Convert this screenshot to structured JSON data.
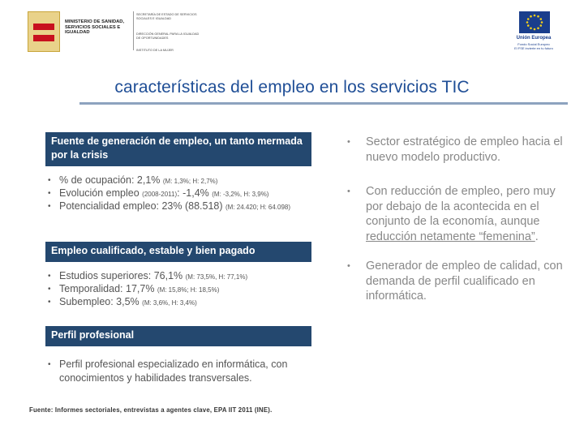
{
  "header": {
    "ministry_name": "Ministerio de Sanidad, Servicios Sociales e Igualdad",
    "ministry_sub1": "Secretaría de Estado de Servicios Sociales e Igualdad",
    "ministry_sub2": "Dirección General para la Igualdad de Oportunidades",
    "ministry_sub3": "Instituto de la Mujer",
    "eu_name": "Unión Europea",
    "eu_fund": "Fondo Social Europeo",
    "eu_motto": "El FSE invierte en tu futuro"
  },
  "title": "características del empleo en los servicios TIC",
  "left": {
    "section1": {
      "heading": "Fuente de generación de empleo, un tanto mermada por la crisis",
      "items": [
        {
          "main": "% de ocupación: 2,1% ",
          "small": "(M: 1,3%; H: 2,7%)",
          "tail": ""
        },
        {
          "main": "Evolución empleo ",
          "small": "(2008-2011)",
          "tail": ": -1,4% ",
          "small2": "(M: -3,2%, H: 3,9%)"
        },
        {
          "main": "Potencialidad empleo: 23% (88.518) ",
          "small": "(M: 24.420; H: 64.098)",
          "tail": ""
        }
      ]
    },
    "section2": {
      "heading": "Empleo cualificado, estable y bien pagado",
      "items": [
        {
          "main": "Estudios superiores: 76,1% ",
          "small": "(M: 73,5%, H: 77,1%)"
        },
        {
          "main": "Temporalidad: 17,7% ",
          "small": "(M: 15,8%; H: 18,5%)"
        },
        {
          "main": "Subempleo: 3,5% ",
          "small": "(M: 3,6%, H: 3,4%)"
        }
      ]
    },
    "section3": {
      "heading": "Perfil profesional",
      "items": [
        {
          "main": "Perfil profesional especializado en informática, con conocimientos y habilidades transversales."
        }
      ]
    },
    "source": "Fuente: Informes sectoriales, entrevistas a agentes clave, EPA IIT 2011 (INE)."
  },
  "right": {
    "items": [
      {
        "text": "Sector estratégico de empleo hacia el nuevo modelo productivo."
      },
      {
        "text": "Con reducción de empleo, pero muy por debajo de la acontecida en el conjunto de la economía, aunque ",
        "underlined": "reducción netamente “femenina”",
        "tail": "."
      },
      {
        "text": "Generador de empleo de calidad, con demanda de perfil cualificado en informática."
      }
    ]
  },
  "bullet": "•",
  "colors": {
    "title": "#1f4e96",
    "box_bg": "#24486f",
    "right_text": "#888888"
  }
}
